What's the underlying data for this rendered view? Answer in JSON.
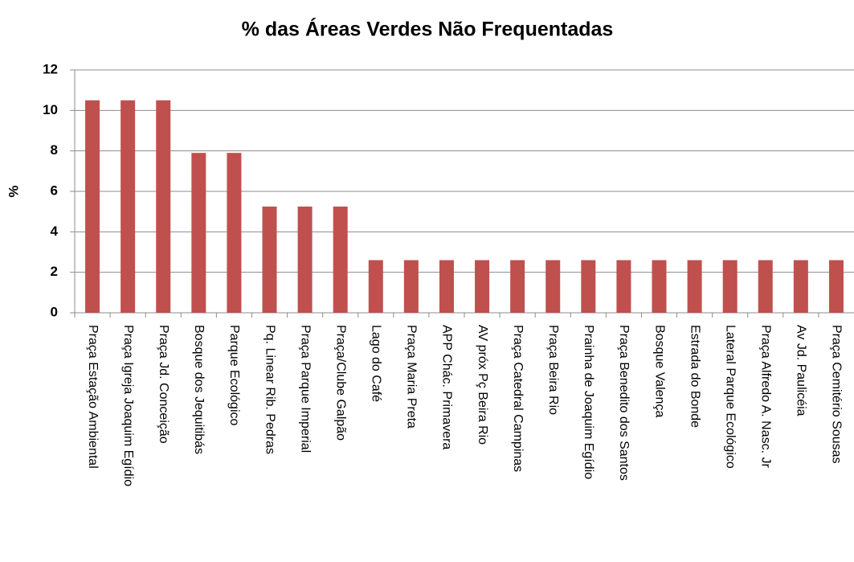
{
  "chart_data": {
    "type": "bar",
    "title": "% das Áreas Verdes Não Frequentadas",
    "y_label": "%",
    "categories": [
      "Praça Estação Ambiental",
      "Praça Igreja Joaquim Egídio",
      "Praça Jd. Conceição",
      "Bosque dos Jequitibás",
      "Parque Ecológico",
      "Pq. Linear Rib. Pedras",
      "Praça Parque Imperial",
      "Praça/Clube Galpão",
      "Lago do Café",
      "Praça Maria Preta",
      "APP Chác. Primavera",
      "AV próx Pç Beira Rio",
      "Praça Catedral Campinas",
      "Praça Beira Rio",
      "Prainha de Joaquim Egídio",
      "Praça Benedito dos Santos",
      "Bosque Valença",
      "Estrada do Bonde",
      "Lateral Parque Ecológico",
      "Praça Alfredo A. Nasc. Jr",
      "Av Jd. Paulicéia",
      "Praça Cemitério Sousas"
    ],
    "values": [
      10.5,
      10.5,
      10.5,
      7.9,
      7.9,
      5.25,
      5.25,
      5.25,
      2.6,
      2.6,
      2.6,
      2.6,
      2.6,
      2.6,
      2.6,
      2.6,
      2.6,
      2.6,
      2.6,
      2.6,
      2.6,
      2.6
    ],
    "color": "#c0504d",
    "ylim": [
      0,
      12
    ],
    "yticks": [
      0,
      2,
      4,
      6,
      8,
      10,
      12
    ],
    "grid": true
  }
}
